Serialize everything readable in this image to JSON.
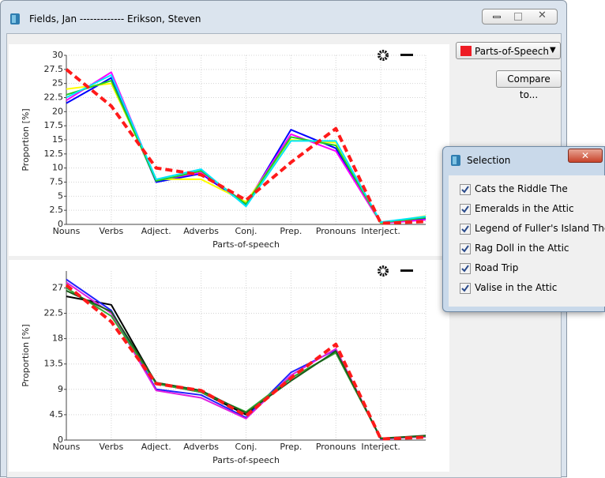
{
  "window": {
    "title": "Fields, Jan  -------------  Erikson, Steven"
  },
  "controls": {
    "dropdown": "Parts-of-Speech",
    "dropdown_color": "#ee1c24",
    "button": "Compare to..."
  },
  "selection": {
    "title": "Selection",
    "items": [
      {
        "label": "Cats  the Riddle The",
        "checked": true
      },
      {
        "label": "Emeralds in the Attic",
        "checked": true
      },
      {
        "label": "Legend of Fuller's Island The",
        "checked": true
      },
      {
        "label": "Rag Doll in the Attic",
        "checked": true
      },
      {
        "label": "Road Trip",
        "checked": true
      },
      {
        "label": "Valise in the Attic",
        "checked": true
      }
    ]
  },
  "chart_data": [
    {
      "type": "line",
      "xlabel": "Parts-of-speech",
      "ylabel": "Proportion [%]",
      "grid": true,
      "categories": [
        "Nouns",
        "Verbs",
        "Adject.",
        "Adverbs",
        "Conj.",
        "Prep.",
        "Pronouns",
        "Interject.",
        null
      ],
      "ylim": [
        0,
        30
      ],
      "yticks": [
        0,
        2.5,
        5,
        7.5,
        10,
        12.5,
        15,
        17.5,
        20,
        22.5,
        25,
        27.5,
        30
      ],
      "series": [
        {
          "color": "#0000ff",
          "values": [
            21.5,
            26,
            7.5,
            9,
            3.5,
            16.8,
            13.5,
            0.2,
            1.0
          ]
        },
        {
          "color": "#ff00ff",
          "values": [
            22,
            27,
            7.8,
            9.2,
            3.8,
            16,
            13,
            0.2,
            0.8
          ]
        },
        {
          "color": "#ffff00",
          "values": [
            24,
            25,
            8,
            8,
            4,
            15,
            14.5,
            0.2,
            1.5
          ]
        },
        {
          "color": "#22cc22",
          "values": [
            23,
            25.5,
            7.7,
            9.5,
            3.6,
            15.5,
            14,
            0.3,
            1.2
          ]
        },
        {
          "color": "#00e5ff",
          "values": [
            22.5,
            26.5,
            8,
            9.8,
            3.2,
            14.8,
            14.8,
            0.4,
            1.4
          ]
        },
        {
          "color": "#ff1a1a",
          "style": "dashed",
          "values": [
            27.5,
            21,
            10,
            8.8,
            4.3,
            11,
            17,
            0.2,
            0.5
          ]
        }
      ]
    },
    {
      "type": "line",
      "xlabel": "Parts-of-speech",
      "ylabel": "Proportion [%]",
      "grid": true,
      "categories": [
        "Nouns",
        "Verbs",
        "Adject.",
        "Adverbs",
        "Conj.",
        "Prep.",
        "Pronouns",
        "Interject.",
        null
      ],
      "ylim": [
        0,
        30
      ],
      "yticks": [
        0,
        4.5,
        9,
        13.5,
        18,
        22.5,
        27
      ],
      "series": [
        {
          "color": "#000000",
          "values": [
            25.5,
            24,
            10,
            8.5,
            4.5,
            11,
            15.5,
            0.3,
            0.6
          ]
        },
        {
          "color": "#2020ff",
          "values": [
            28.5,
            23,
            9,
            8,
            4,
            12,
            16,
            0.2,
            0.7
          ]
        },
        {
          "color": "#e020e0",
          "values": [
            28,
            22.5,
            8.8,
            7.5,
            3.8,
            11.5,
            16.2,
            0.2,
            0.6
          ]
        },
        {
          "color": "#33aa33",
          "values": [
            27,
            22,
            10,
            8.5,
            5,
            11,
            15.5,
            0.3,
            0.7
          ]
        },
        {
          "color": "#1a5e1a",
          "values": [
            26.5,
            22.8,
            10.2,
            8.8,
            4.8,
            10.5,
            15.8,
            0.3,
            0.8
          ]
        },
        {
          "color": "#ff1a1a",
          "style": "dashed",
          "values": [
            27.5,
            21,
            10,
            8.8,
            4.3,
            11,
            17,
            0.2,
            0.5
          ]
        }
      ]
    }
  ]
}
